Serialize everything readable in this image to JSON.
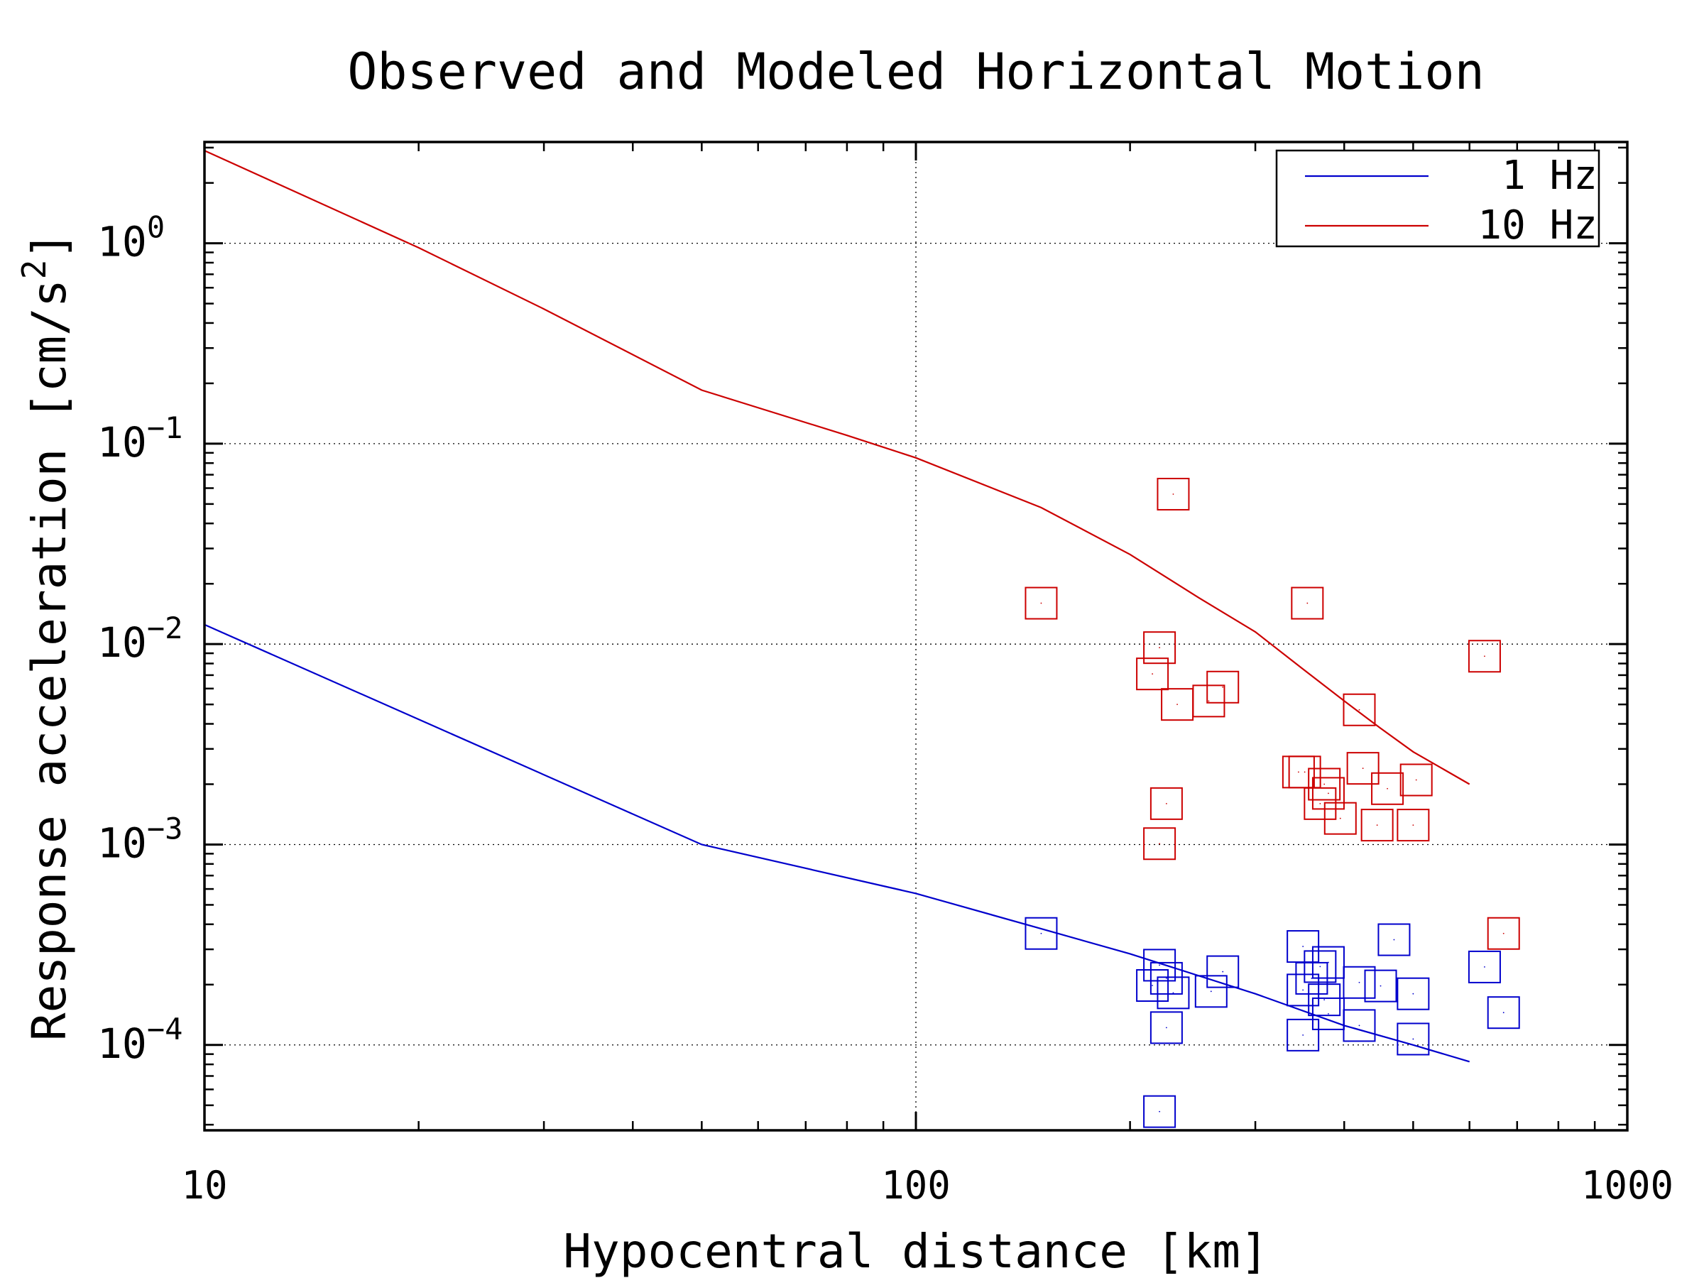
{
  "chart_data": {
    "type": "scatter",
    "title": "Observed and Modeled Horizontal Motion",
    "xlabel": "Hypocentral distance [km]",
    "ylabel_main": "Response acceleration [cm/s",
    "ylabel_sup": "2",
    "ylabel_end": "]",
    "x_scale": "log",
    "y_scale": "log",
    "xlim": [
      10,
      1000
    ],
    "ylim": [
      3.75e-05,
      3.2
    ],
    "x_ticks": [
      {
        "value": 10,
        "label": "10"
      },
      {
        "value": 100,
        "label": "100"
      },
      {
        "value": 1000,
        "label": "1000"
      }
    ],
    "y_ticks": [
      {
        "value": 1,
        "base": "10",
        "exp": "0"
      },
      {
        "value": 0.1,
        "base": "10",
        "exp": "−1"
      },
      {
        "value": 0.01,
        "base": "10",
        "exp": "−2"
      },
      {
        "value": 0.001,
        "base": "10",
        "exp": "−3"
      },
      {
        "value": 0.0001,
        "base": "10",
        "exp": "−4"
      }
    ],
    "grid": true,
    "legend_position": "top-right",
    "series": [
      {
        "name": "1 Hz",
        "color": "#0000cc",
        "line_x": [
          10,
          50,
          100,
          150,
          200,
          300,
          400,
          500,
          600
        ],
        "line_y": [
          0.0125,
          0.001,
          0.00057,
          0.00038,
          0.000285,
          0.00018,
          0.000125,
          0.0001,
          8.25e-05
        ],
        "points": [
          [
            150,
            0.00036
          ],
          [
            220,
            0.00025
          ],
          [
            215,
            0.000198
          ],
          [
            225,
            0.000215
          ],
          [
            230,
            0.000182
          ],
          [
            260,
            0.000185
          ],
          [
            270,
            0.000232
          ],
          [
            225,
            0.000122
          ],
          [
            220,
            4.65e-05
          ],
          [
            350,
            0.00031
          ],
          [
            350,
            0.000188
          ],
          [
            370,
            0.000246
          ],
          [
            380,
            0.000258
          ],
          [
            360,
            0.000215
          ],
          [
            375,
            0.000168
          ],
          [
            380,
            0.000143
          ],
          [
            420,
            0.000205
          ],
          [
            450,
            0.000197
          ],
          [
            420,
            0.000125
          ],
          [
            470,
            0.000335
          ],
          [
            500,
            0.00018
          ],
          [
            500,
            0.000107
          ],
          [
            350,
            0.000112
          ],
          [
            630,
            0.000245
          ],
          [
            670,
            0.000145
          ]
        ]
      },
      {
        "name": "10 Hz",
        "color": "#cc0000",
        "line_x": [
          10,
          20,
          30,
          50,
          80,
          100,
          150,
          200,
          250,
          300,
          350,
          400,
          450,
          500,
          600
        ],
        "line_y": [
          2.9,
          0.95,
          0.47,
          0.185,
          0.11,
          0.085,
          0.048,
          0.028,
          0.017,
          0.0115,
          0.0075,
          0.0052,
          0.0038,
          0.0029,
          0.002
        ],
        "points": [
          [
            230,
            0.056
          ],
          [
            150,
            0.016
          ],
          [
            355,
            0.016
          ],
          [
            630,
            0.0087
          ],
          [
            220,
            0.0096
          ],
          [
            215,
            0.0071
          ],
          [
            233,
            0.005
          ],
          [
            258,
            0.0052
          ],
          [
            270,
            0.0061
          ],
          [
            420,
            0.0047
          ],
          [
            345,
            0.0023
          ],
          [
            352,
            0.0023
          ],
          [
            375,
            0.002
          ],
          [
            380,
            0.0018
          ],
          [
            370,
            0.0016
          ],
          [
            395,
            0.00135
          ],
          [
            425,
            0.0024
          ],
          [
            460,
            0.0019
          ],
          [
            505,
            0.0021
          ],
          [
            445,
            0.00125
          ],
          [
            500,
            0.00125
          ],
          [
            225,
            0.0016
          ],
          [
            220,
            0.00101
          ],
          [
            670,
            0.00036
          ]
        ]
      }
    ]
  }
}
